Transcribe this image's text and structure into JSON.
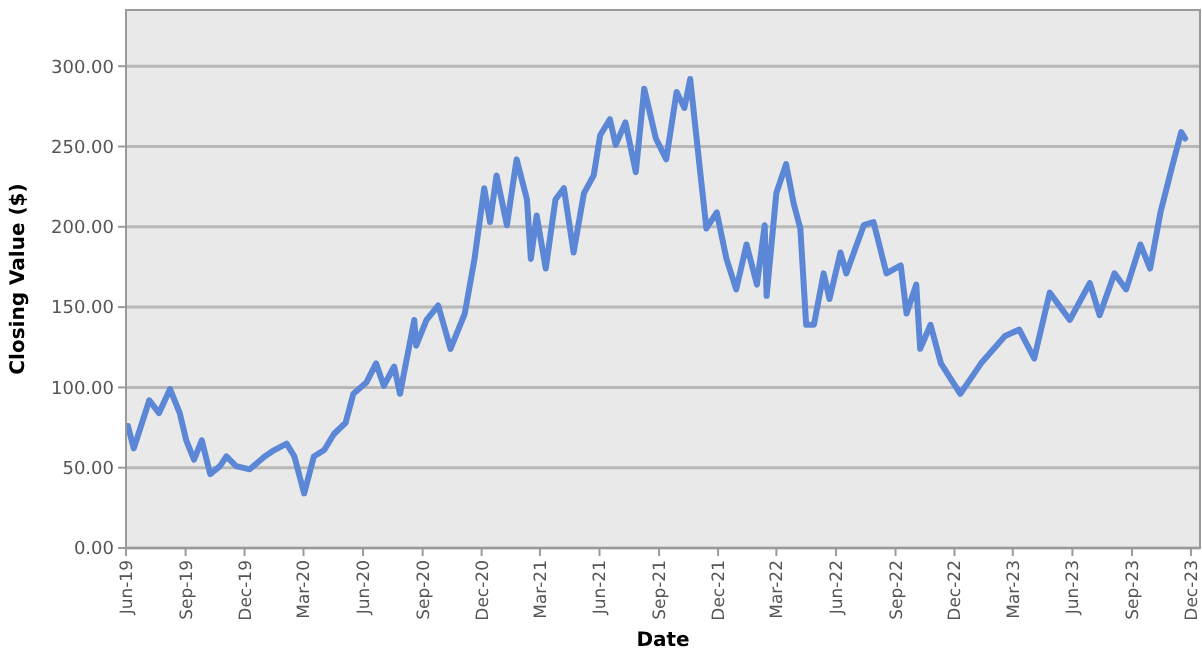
{
  "chart_data": {
    "type": "line",
    "xlabel": "Date",
    "ylabel": "Closing Value ($)",
    "x": [
      "2019-06-04",
      "2019-06-13",
      "2019-07-07",
      "2019-07-22",
      "2019-08-08",
      "2019-08-23",
      "2019-09-02",
      "2019-09-14",
      "2019-09-26",
      "2019-10-09",
      "2019-10-24",
      "2019-11-03",
      "2019-11-18",
      "2019-12-09",
      "2020-01-01",
      "2020-01-16",
      "2020-02-04",
      "2020-02-16",
      "2020-03-02",
      "2020-03-17",
      "2020-04-02",
      "2020-04-17",
      "2020-05-05",
      "2020-05-17",
      "2020-06-06",
      "2020-06-21",
      "2020-07-03",
      "2020-07-19",
      "2020-07-28",
      "2020-08-19",
      "2020-08-22",
      "2020-09-07",
      "2020-09-25",
      "2020-10-14",
      "2020-11-05",
      "2020-11-20",
      "2020-12-05",
      "2020-12-14",
      "2020-12-24",
      "2021-01-09",
      "2021-01-24",
      "2021-02-09",
      "2021-02-15",
      "2021-02-24",
      "2021-03-10",
      "2021-03-25",
      "2021-04-07",
      "2021-04-22",
      "2021-05-08",
      "2021-05-23",
      "2021-06-02",
      "2021-06-17",
      "2021-06-26",
      "2021-07-11",
      "2021-07-27",
      "2021-08-09",
      "2021-08-27",
      "2021-09-12",
      "2021-09-28",
      "2021-10-10",
      "2021-10-19",
      "2021-11-04",
      "2021-11-13",
      "2021-11-29",
      "2021-12-14",
      "2021-12-29",
      "2022-01-14",
      "2022-01-30",
      "2022-02-11",
      "2022-02-14",
      "2022-03-01",
      "2022-03-16",
      "2022-03-28",
      "2022-04-07",
      "2022-04-16",
      "2022-04-28",
      "2022-05-13",
      "2022-05-22",
      "2022-06-08",
      "2022-06-17",
      "2022-07-14",
      "2022-07-29",
      "2022-08-18",
      "2022-09-09",
      "2022-09-18",
      "2022-10-03",
      "2022-10-09",
      "2022-10-25",
      "2022-11-10",
      "2022-12-10",
      "2023-01-11",
      "2023-02-17",
      "2023-03-11",
      "2023-04-03",
      "2023-04-27",
      "2023-05-28",
      "2023-06-28",
      "2023-07-13",
      "2023-08-05",
      "2023-08-23",
      "2023-09-14",
      "2023-09-29",
      "2023-10-15",
      "2023-11-01",
      "2023-11-16",
      "2023-11-22"
    ],
    "series": [
      {
        "color": "#5b87d6",
        "values": [
          76,
          62,
          92,
          84,
          99,
          84,
          67,
          55,
          67,
          46,
          51,
          57,
          51,
          49,
          57,
          61,
          65,
          57,
          34,
          57,
          61,
          71,
          78,
          96,
          103,
          115,
          101,
          113,
          96,
          142,
          126,
          142,
          151,
          124,
          146,
          180,
          224,
          203,
          232,
          201,
          242,
          217,
          180,
          207,
          174,
          217,
          224,
          184,
          221,
          232,
          257,
          267,
          251,
          265,
          234,
          286,
          255,
          242,
          284,
          274,
          292,
          232,
          199,
          209,
          180,
          161,
          189,
          164,
          201,
          157,
          221,
          239,
          214,
          199,
          139,
          139,
          171,
          155,
          184,
          171,
          201,
          203,
          171,
          176,
          146,
          164,
          124,
          139,
          115,
          96,
          115,
          132,
          136,
          118,
          159,
          142,
          165,
          145,
          171,
          161,
          189,
          174,
          209,
          236,
          259,
          255
        ]
      }
    ],
    "xlim": [
      "2019-06-01",
      "2023-12-15"
    ],
    "xticks": [
      {
        "value": "2019-06-01",
        "label": "Jun-19"
      },
      {
        "value": "2019-09-01",
        "label": "Sep-19"
      },
      {
        "value": "2019-12-01",
        "label": "Dec-19"
      },
      {
        "value": "2020-03-01",
        "label": "Mar-20"
      },
      {
        "value": "2020-06-01",
        "label": "Jun-20"
      },
      {
        "value": "2020-09-01",
        "label": "Sep-20"
      },
      {
        "value": "2020-12-01",
        "label": "Dec-20"
      },
      {
        "value": "2021-03-01",
        "label": "Mar-21"
      },
      {
        "value": "2021-06-01",
        "label": "Jun-21"
      },
      {
        "value": "2021-09-01",
        "label": "Sep-21"
      },
      {
        "value": "2021-12-01",
        "label": "Dec-21"
      },
      {
        "value": "2022-03-01",
        "label": "Mar-22"
      },
      {
        "value": "2022-06-01",
        "label": "Jun-22"
      },
      {
        "value": "2022-09-01",
        "label": "Sep-22"
      },
      {
        "value": "2022-12-01",
        "label": "Dec-22"
      },
      {
        "value": "2023-03-01",
        "label": "Mar-23"
      },
      {
        "value": "2023-06-01",
        "label": "Jun-23"
      },
      {
        "value": "2023-09-01",
        "label": "Sep-23"
      },
      {
        "value": "2023-12-01",
        "label": "Dec-23"
      }
    ],
    "ylim": [
      0,
      335
    ],
    "yticks": [
      {
        "value": 0,
        "label": "0.00"
      },
      {
        "value": 50,
        "label": "50.00"
      },
      {
        "value": 100,
        "label": "100.00"
      },
      {
        "value": 150,
        "label": "150.00"
      },
      {
        "value": 200,
        "label": "200.00"
      },
      {
        "value": 250,
        "label": "250.00"
      },
      {
        "value": 300,
        "label": "300.00"
      }
    ],
    "grid": "y",
    "marker": "none",
    "line_style": "solid"
  }
}
